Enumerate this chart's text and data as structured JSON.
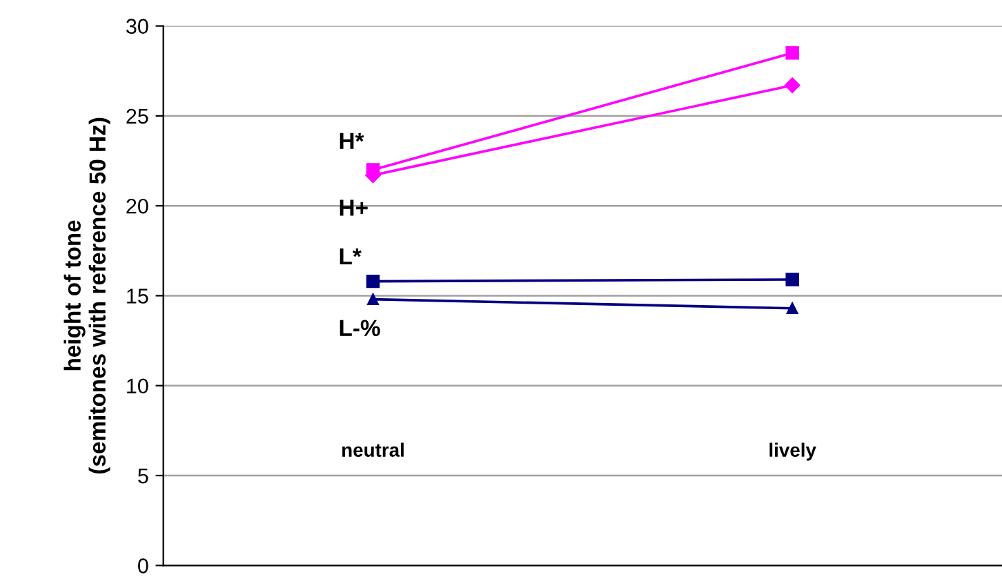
{
  "chart_data": {
    "type": "line",
    "ylabel": "height of tone\n(semitones with reference 50 Hz)",
    "categories": [
      "neutral",
      "lively"
    ],
    "series": [
      {
        "name": "H*",
        "color": "#ff00ff",
        "marker": "square",
        "values": [
          22.0,
          28.5
        ]
      },
      {
        "name": "H+",
        "color": "#ff00ff",
        "marker": "diamond",
        "values": [
          21.7,
          26.7
        ]
      },
      {
        "name": "L*",
        "color": "#000080",
        "marker": "square",
        "values": [
          15.8,
          15.9
        ]
      },
      {
        "name": "L-%",
        "color": "#000080",
        "marker": "triangle",
        "values": [
          14.8,
          14.3
        ]
      }
    ],
    "ylim": [
      0,
      30
    ],
    "yticks": [
      0,
      5,
      10,
      15,
      20,
      25,
      30
    ],
    "grid": "y",
    "legend": false
  }
}
